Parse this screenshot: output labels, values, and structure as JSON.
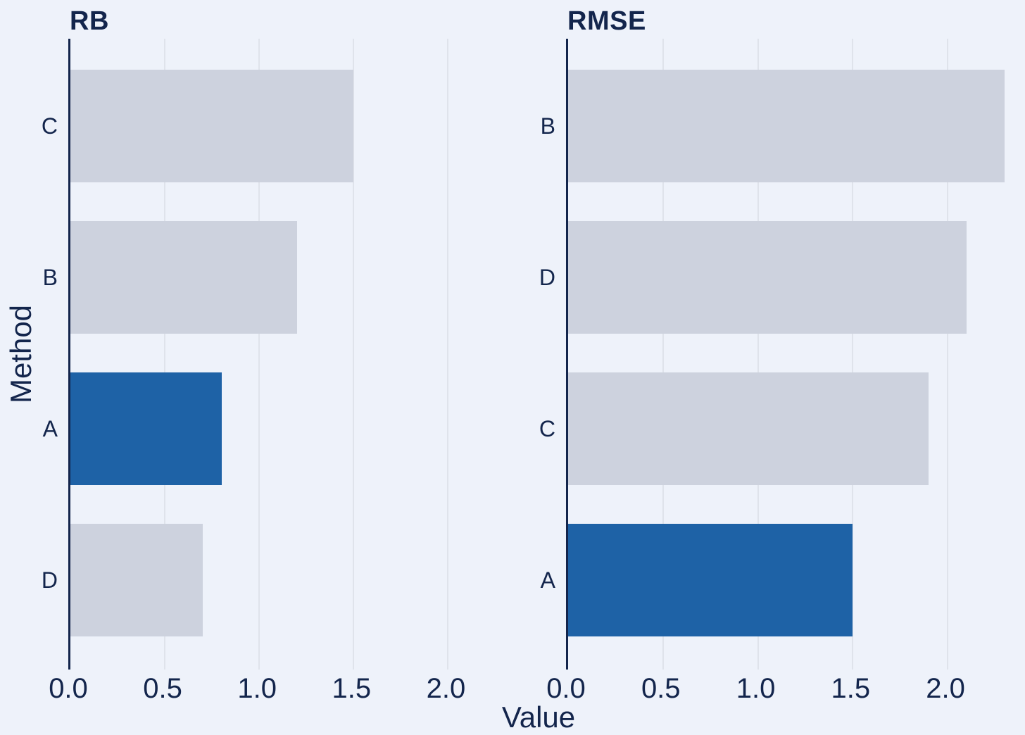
{
  "figure": {
    "xlabel": "Value",
    "ylabel": "Method",
    "background_color": "#eef2fa",
    "text_color": "#13254c",
    "spine_color": "#13254c",
    "gridline_color": "#dfe3eb"
  },
  "chart_data": [
    {
      "type": "bar",
      "orientation": "horizontal",
      "title": "RB",
      "categories": [
        "C",
        "B",
        "A",
        "D"
      ],
      "values": [
        1.5,
        1.2,
        0.8,
        0.7
      ],
      "highlight_category": "A",
      "colors": {
        "default": "#cdd2de",
        "highlight": "#1e62a6"
      },
      "xlim": [
        0,
        2.33
      ],
      "xticks": [
        0,
        0.5,
        1.0,
        1.5,
        2.0
      ],
      "grid": true,
      "legend_position": "none"
    },
    {
      "type": "bar",
      "orientation": "horizontal",
      "title": "RMSE",
      "categories": [
        "B",
        "D",
        "C",
        "A"
      ],
      "values": [
        2.3,
        2.1,
        1.9,
        1.5
      ],
      "highlight_category": "A",
      "colors": {
        "default": "#cdd2de",
        "highlight": "#1e62a6"
      },
      "xlim": [
        0,
        2.33
      ],
      "xticks": [
        0,
        0.5,
        1.0,
        1.5,
        2.0
      ],
      "grid": true,
      "legend_position": "none"
    }
  ]
}
